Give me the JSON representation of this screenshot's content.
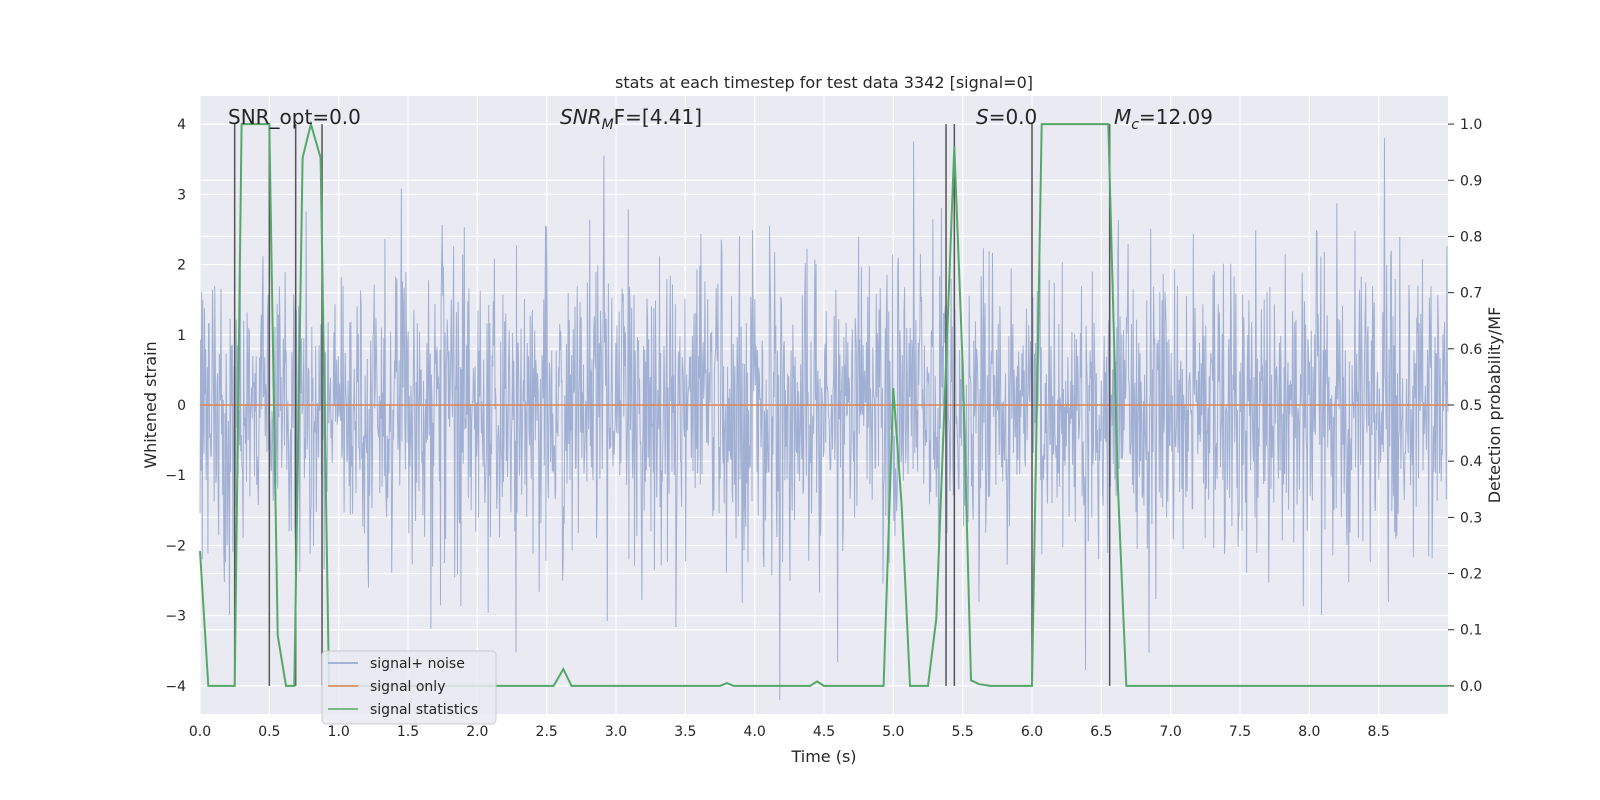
{
  "chart_data": {
    "type": "line",
    "title": "stats at each timestep for test data 3342 [signal=0]",
    "xlabel": "Time (s)",
    "ylabel_left": "Whitened strain",
    "ylabel_right": "Detection probability/MF",
    "xlim": [
      0.0,
      9.0
    ],
    "ylim_left": [
      -4.4,
      4.4
    ],
    "ylim_right": [
      -0.05,
      1.05
    ],
    "x_ticks": [
      "0.0",
      "0.5",
      "1.0",
      "1.5",
      "2.0",
      "2.5",
      "3.0",
      "3.5",
      "4.0",
      "4.5",
      "5.0",
      "5.5",
      "6.0",
      "6.5",
      "7.0",
      "7.5",
      "8.0",
      "8.5"
    ],
    "y_left_ticks": [
      "−4",
      "−3",
      "−2",
      "−1",
      "0",
      "1",
      "2",
      "3",
      "4"
    ],
    "y_right_ticks": [
      "0.0",
      "0.1",
      "0.2",
      "0.3",
      "0.4",
      "0.5",
      "0.6",
      "0.7",
      "0.8",
      "0.9",
      "1.0"
    ],
    "annotations": {
      "snr_opt": "SNR_opt=0.0",
      "snr_mf_main": "SNR",
      "snr_mf_sub": "M",
      "snr_mf_rest": "F=[4.41]",
      "s_main": "S",
      "s_rest": "=0.0",
      "mc_main": "M",
      "mc_sub": "c",
      "mc_rest": "=12.09"
    },
    "legend": {
      "placement": "lower-left",
      "entries": [
        "signal+ noise",
        "signal only",
        "signal statistics"
      ]
    },
    "colors": {
      "noise": "#8da0cb",
      "signal": "#dd8452",
      "stats": "#55a868",
      "vline": "#555555",
      "background": "#eaeaf2",
      "grid": "#ffffff"
    },
    "series": [
      {
        "name": "signal+ noise",
        "description_kind": "noise",
        "t_start": 0.0,
        "t_end": 9.0,
        "std": 0.8
      },
      {
        "name": "signal only",
        "values_constant": 0.0
      },
      {
        "name": "signal statistics",
        "x": [
          0.0,
          0.06,
          0.25,
          0.3,
          0.5,
          0.56,
          0.62,
          0.68,
          0.74,
          0.8,
          0.87,
          0.93,
          0.98,
          2.55,
          2.62,
          2.68,
          3.75,
          3.8,
          3.85,
          4.4,
          4.45,
          4.5,
          4.93,
          5.0,
          5.06,
          5.12,
          5.25,
          5.31,
          5.38,
          5.44,
          5.5,
          5.56,
          5.62,
          5.7,
          5.95,
          6.0,
          6.07,
          6.55,
          6.62,
          6.68,
          7.5,
          8.5,
          9.0
        ],
        "values": [
          0.24,
          0.0,
          0.0,
          1.0,
          1.0,
          0.09,
          0.0,
          0.0,
          0.94,
          1.0,
          0.94,
          0.0,
          0.0,
          0.0,
          0.03,
          0.0,
          0.0,
          0.005,
          0.0,
          0.0,
          0.008,
          0.0,
          0.0,
          0.53,
          0.32,
          0.0,
          0.0,
          0.12,
          0.57,
          0.96,
          0.57,
          0.01,
          0.003,
          0.0,
          0.0,
          0.0,
          1.0,
          1.0,
          0.35,
          0.0,
          0.0,
          0.0,
          0.0
        ]
      }
    ],
    "vlines": [
      0.25,
      0.5,
      0.69,
      0.88,
      5.38,
      5.44,
      6.0,
      6.56
    ]
  }
}
